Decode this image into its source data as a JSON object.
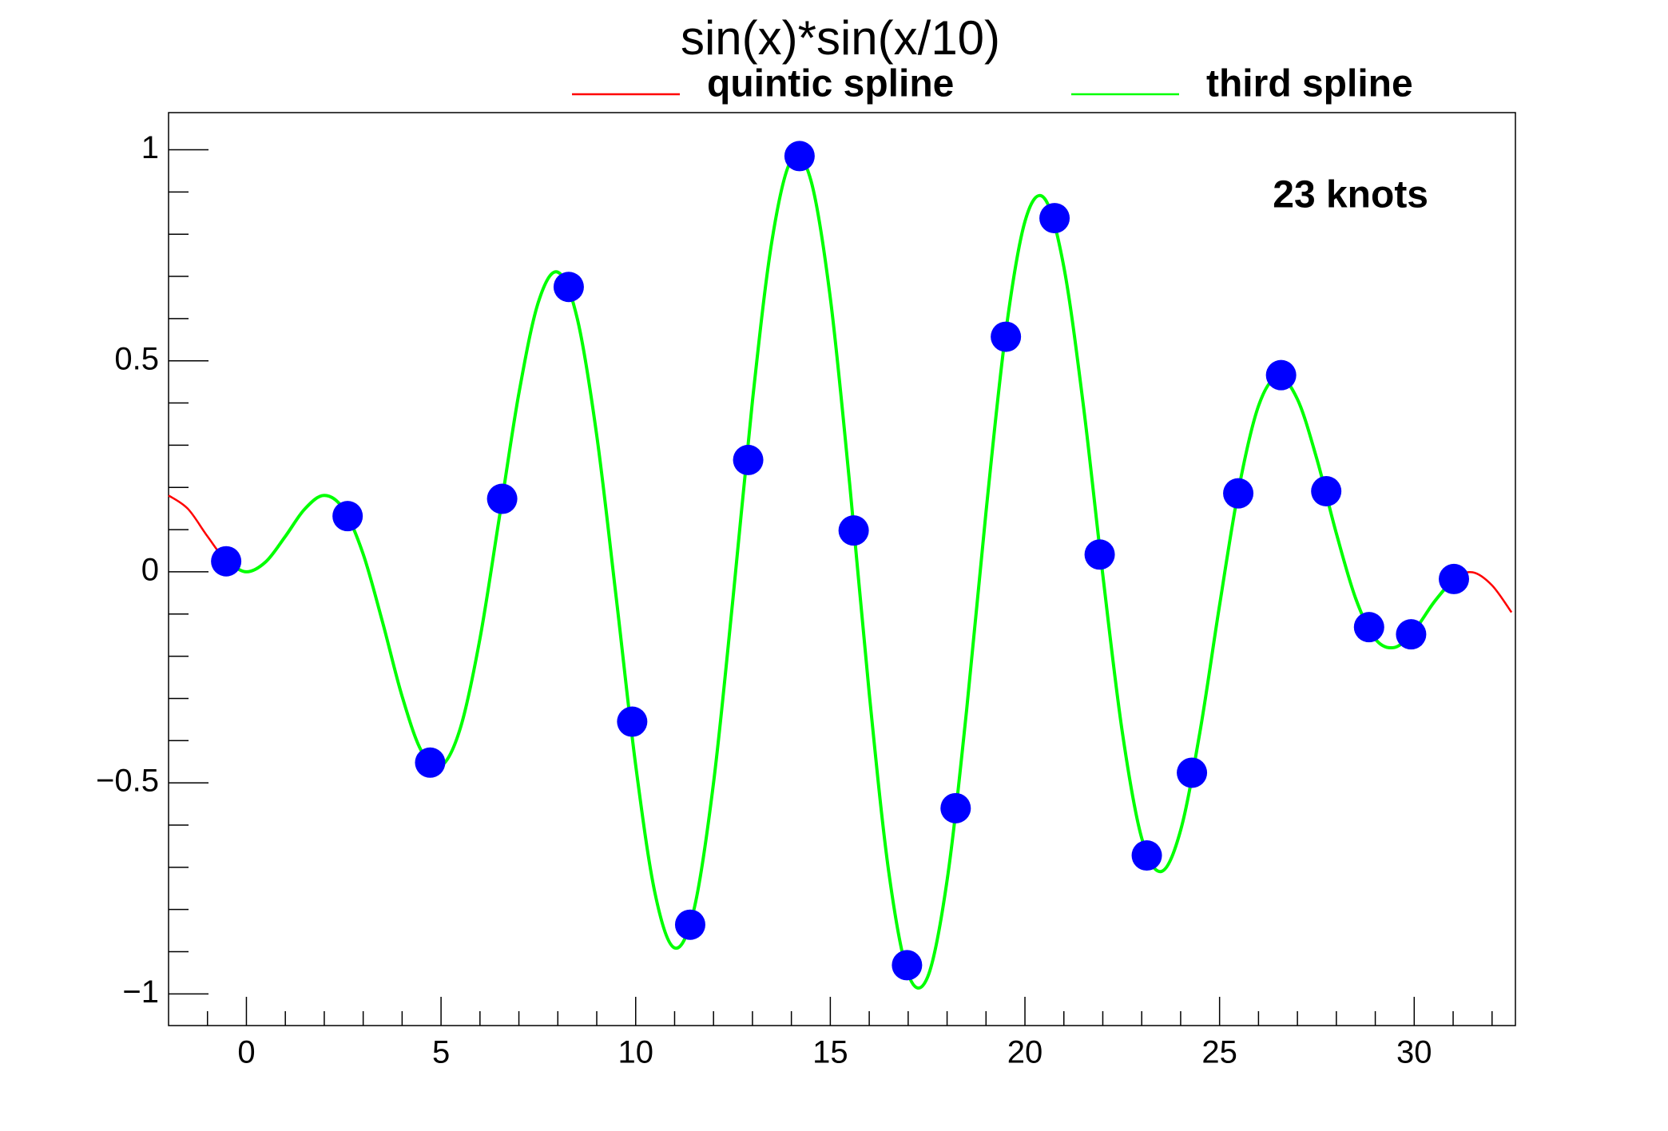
{
  "chart_data": {
    "type": "line",
    "title": "sin(x)*sin(x/10)",
    "annotation": "23 knots",
    "x": [
      -2,
      -1.5,
      -1,
      -0.5,
      0,
      0.5,
      1,
      1.5,
      2,
      2.5,
      3,
      3.5,
      4,
      4.5,
      5,
      5.5,
      6,
      6.5,
      7,
      7.5,
      8,
      8.5,
      9,
      9.5,
      10,
      10.5,
      11,
      11.5,
      12,
      12.5,
      13,
      13.5,
      14,
      14.5,
      15,
      15.5,
      16,
      16.5,
      17,
      17.5,
      18,
      18.5,
      19,
      19.5,
      20,
      20.5,
      21,
      21.5,
      22,
      22.5,
      23,
      23.5,
      24,
      24.5,
      25,
      25.5,
      26,
      26.5,
      27,
      27.5,
      28,
      28.5,
      29,
      29.5,
      30,
      30.5,
      31,
      31.5,
      32,
      32.5
    ],
    "series": [
      {
        "name": "quintic spline",
        "color": "#ff0000",
        "values": [
          0.181,
          0.149,
          0.084,
          0.024,
          0,
          0.024,
          0.084,
          0.149,
          0.181,
          0.148,
          0.042,
          -0.12,
          -0.295,
          -0.425,
          -0.46,
          -0.369,
          -0.158,
          0.13,
          0.423,
          0.639,
          0.71,
          0.6,
          0.323,
          -0.061,
          -0.458,
          -0.763,
          -0.891,
          -0.799,
          -0.5,
          -0.063,
          0.405,
          0.784,
          0.976,
          0.928,
          0.649,
          0.206,
          -0.288,
          -0.71,
          -0.953,
          -0.96,
          -0.731,
          -0.329,
          0.142,
          0.563,
          0.83,
          0.885,
          0.722,
          0.395,
          -0.007,
          -0.379,
          -0.631,
          -0.71,
          -0.612,
          -0.377,
          -0.079,
          0.2,
          0.393,
          0.462,
          0.409,
          0.267,
          0.091,
          -0.064,
          -0.159,
          -0.179,
          -0.139,
          -0.073,
          -0.017,
          -0.001,
          -0.032,
          -0.096
        ]
      },
      {
        "name": "third spline",
        "color": "#00ff00",
        "values": [
          null,
          null,
          null,
          0.024,
          0,
          0.024,
          0.084,
          0.149,
          0.181,
          0.148,
          0.042,
          -0.12,
          -0.295,
          -0.425,
          -0.46,
          -0.369,
          -0.158,
          0.13,
          0.423,
          0.639,
          0.71,
          0.6,
          0.323,
          -0.061,
          -0.458,
          -0.763,
          -0.891,
          -0.799,
          -0.5,
          -0.063,
          0.405,
          0.784,
          0.976,
          0.928,
          0.649,
          0.206,
          -0.288,
          -0.71,
          -0.953,
          -0.96,
          -0.731,
          -0.329,
          0.142,
          0.563,
          0.83,
          0.885,
          0.722,
          0.395,
          -0.007,
          -0.379,
          -0.631,
          -0.71,
          -0.612,
          -0.377,
          -0.079,
          0.2,
          0.393,
          0.462,
          0.409,
          0.267,
          0.091,
          -0.064,
          -0.159,
          -0.179,
          -0.139,
          -0.073,
          -0.017,
          null,
          null,
          null
        ]
      }
    ],
    "markers": {
      "color": "#0000ff",
      "x": [
        -0.52,
        2.6,
        4.72,
        6.57,
        8.28,
        9.91,
        11.4,
        12.89,
        14.21,
        15.6,
        16.97,
        18.22,
        19.51,
        20.76,
        21.92,
        23.13,
        24.29,
        25.48,
        26.58,
        27.74,
        28.84,
        29.92,
        31.02
      ],
      "values": [
        0.025,
        0.132,
        -0.452,
        0.173,
        0.675,
        -0.355,
        -0.836,
        0.265,
        0.985,
        0.098,
        -0.932,
        -0.56,
        0.557,
        0.838,
        0.041,
        -0.672,
        -0.476,
        0.186,
        0.466,
        0.191,
        -0.131,
        -0.148,
        -0.017
      ]
    },
    "xlim": [
      -2,
      32.6
    ],
    "ylim": [
      -1.075,
      1.088
    ],
    "xticks": [
      0,
      5,
      10,
      15,
      20,
      25,
      30
    ],
    "yticks": [
      {
        "value": -1,
        "label": "−1"
      },
      {
        "value": -0.5,
        "label": "−0.5"
      },
      0,
      0.5,
      1
    ],
    "xminorticks": [
      -1,
      1,
      2,
      3,
      4,
      6,
      7,
      8,
      9,
      11,
      12,
      13,
      14,
      16,
      17,
      18,
      19,
      21,
      22,
      23,
      24,
      26,
      27,
      28,
      29,
      31,
      32
    ],
    "yminorticks": [
      -0.9,
      -0.8,
      -0.7,
      -0.6,
      -0.4,
      -0.3,
      -0.2,
      -0.1,
      0.1,
      0.2,
      0.3,
      0.4,
      0.6,
      0.7,
      0.8,
      0.9
    ]
  }
}
